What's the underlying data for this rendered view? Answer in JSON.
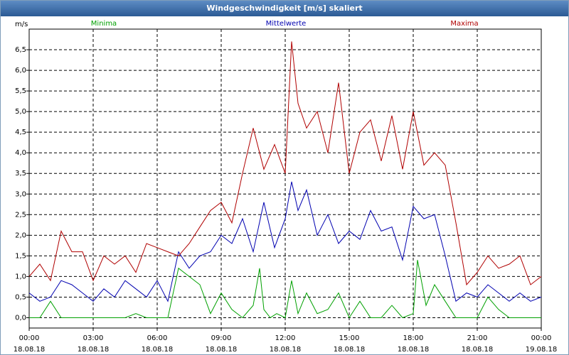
{
  "window": {
    "title": "Windgeschwindigkeit [m/s] skaliert"
  },
  "chart_data": {
    "type": "line",
    "title": "Windgeschwindigkeit [m/s] skaliert",
    "ylabel": "m/s",
    "xlabel": "",
    "ylim": [
      -0.25,
      7.0
    ],
    "xlim": [
      0,
      24
    ],
    "grid": true,
    "y_ticks": [
      "0,0",
      "0,5",
      "1,0",
      "1,5",
      "2,0",
      "2,5",
      "3,0",
      "3,5",
      "4,0",
      "4,5",
      "5,0",
      "5,5",
      "6,0",
      "6,5"
    ],
    "y_tick_values": [
      0,
      0.5,
      1.0,
      1.5,
      2.0,
      2.5,
      3.0,
      3.5,
      4.0,
      4.5,
      5.0,
      5.5,
      6.0,
      6.5
    ],
    "x_ticks": [
      {
        "time": "00:00",
        "date": "18.08.18",
        "hour": 0
      },
      {
        "time": "03:00",
        "date": "18.08.18",
        "hour": 3
      },
      {
        "time": "06:00",
        "date": "18.08.18",
        "hour": 6
      },
      {
        "time": "09:00",
        "date": "18.08.18",
        "hour": 9
      },
      {
        "time": "12:00",
        "date": "18.08.18",
        "hour": 12
      },
      {
        "time": "15:00",
        "date": "18.08.18",
        "hour": 15
      },
      {
        "time": "18:00",
        "date": "18.08.18",
        "hour": 18
      },
      {
        "time": "21:00",
        "date": "18.08.18",
        "hour": 21
      },
      {
        "time": "00:00",
        "date": "19.08.18",
        "hour": 24
      }
    ],
    "series": [
      {
        "name": "Minima",
        "color": "#00a000",
        "legend": "left",
        "x": [
          0,
          0.5,
          1,
          1.5,
          2,
          2.5,
          3,
          3.5,
          4,
          4.5,
          5,
          5.5,
          6,
          6.5,
          7,
          7.5,
          8,
          8.5,
          9,
          9.5,
          10,
          10.5,
          10.8,
          11,
          11.3,
          11.6,
          12,
          12.3,
          12.6,
          13,
          13.5,
          14,
          14.5,
          15,
          15.5,
          16,
          16.5,
          17,
          17.5,
          18,
          18.2,
          18.6,
          19,
          19.5,
          20,
          20.5,
          21,
          21.5,
          22,
          22.5,
          23,
          23.5,
          24
        ],
        "values": [
          0,
          0,
          0.4,
          0,
          0,
          0,
          0,
          0,
          0,
          0,
          0.1,
          0,
          0,
          0,
          1.2,
          1.0,
          0.8,
          0.1,
          0.6,
          0.2,
          0,
          0.3,
          1.2,
          0.2,
          0,
          0.1,
          0,
          0.9,
          0.1,
          0.6,
          0.1,
          0.2,
          0.6,
          0,
          0.4,
          0,
          0,
          0.3,
          0,
          0.1,
          1.4,
          0.3,
          0.8,
          0.4,
          0,
          0,
          0,
          0.5,
          0.2,
          0,
          0,
          0,
          0
        ]
      },
      {
        "name": "Mittelwerte",
        "color": "#0000b0",
        "legend": "center",
        "x": [
          0,
          0.5,
          1,
          1.5,
          2,
          2.5,
          3,
          3.5,
          4,
          4.5,
          5,
          5.5,
          6,
          6.5,
          7,
          7.5,
          8,
          8.5,
          9,
          9.5,
          10,
          10.5,
          11,
          11.5,
          12,
          12.3,
          12.6,
          13,
          13.5,
          14,
          14.5,
          15,
          15.5,
          16,
          16.5,
          17,
          17.5,
          18,
          18.5,
          19,
          19.5,
          20,
          20.5,
          21,
          21.5,
          22,
          22.5,
          23,
          23.5,
          24
        ],
        "values": [
          0.6,
          0.4,
          0.5,
          0.9,
          0.8,
          0.6,
          0.4,
          0.7,
          0.5,
          0.9,
          0.7,
          0.5,
          0.9,
          0.4,
          1.6,
          1.2,
          1.5,
          1.6,
          2.0,
          1.8,
          2.4,
          1.6,
          2.8,
          1.7,
          2.4,
          3.3,
          2.6,
          3.1,
          2.0,
          2.5,
          1.8,
          2.1,
          1.9,
          2.6,
          2.1,
          2.2,
          1.4,
          2.7,
          2.4,
          2.5,
          1.5,
          0.4,
          0.6,
          0.5,
          0.8,
          0.6,
          0.4,
          0.6,
          0.4,
          0.5
        ]
      },
      {
        "name": "Maxima",
        "color": "#b00000",
        "legend": "right",
        "x": [
          0,
          0.5,
          1,
          1.5,
          2,
          2.5,
          3,
          3.5,
          4,
          4.5,
          5,
          5.5,
          6,
          6.5,
          7,
          7.5,
          8,
          8.5,
          9,
          9.5,
          10,
          10.5,
          11,
          11.5,
          12,
          12.3,
          12.6,
          13,
          13.5,
          14,
          14.5,
          15,
          15.5,
          16,
          16.5,
          17,
          17.5,
          18,
          18.5,
          19,
          19.5,
          20,
          20.5,
          21,
          21.5,
          22,
          22.5,
          23,
          23.5,
          24
        ],
        "values": [
          1.0,
          1.3,
          0.9,
          2.1,
          1.6,
          1.6,
          0.9,
          1.5,
          1.3,
          1.5,
          1.1,
          1.8,
          1.7,
          1.6,
          1.5,
          1.8,
          2.2,
          2.6,
          2.8,
          2.3,
          3.5,
          4.6,
          3.6,
          4.2,
          3.5,
          6.7,
          5.2,
          4.6,
          5.0,
          4.0,
          5.7,
          3.5,
          4.5,
          4.8,
          3.8,
          4.9,
          3.6,
          5.0,
          3.7,
          4.0,
          3.7,
          2.3,
          0.8,
          1.1,
          1.5,
          1.2,
          1.3,
          1.5,
          0.8,
          1.0
        ]
      }
    ]
  }
}
